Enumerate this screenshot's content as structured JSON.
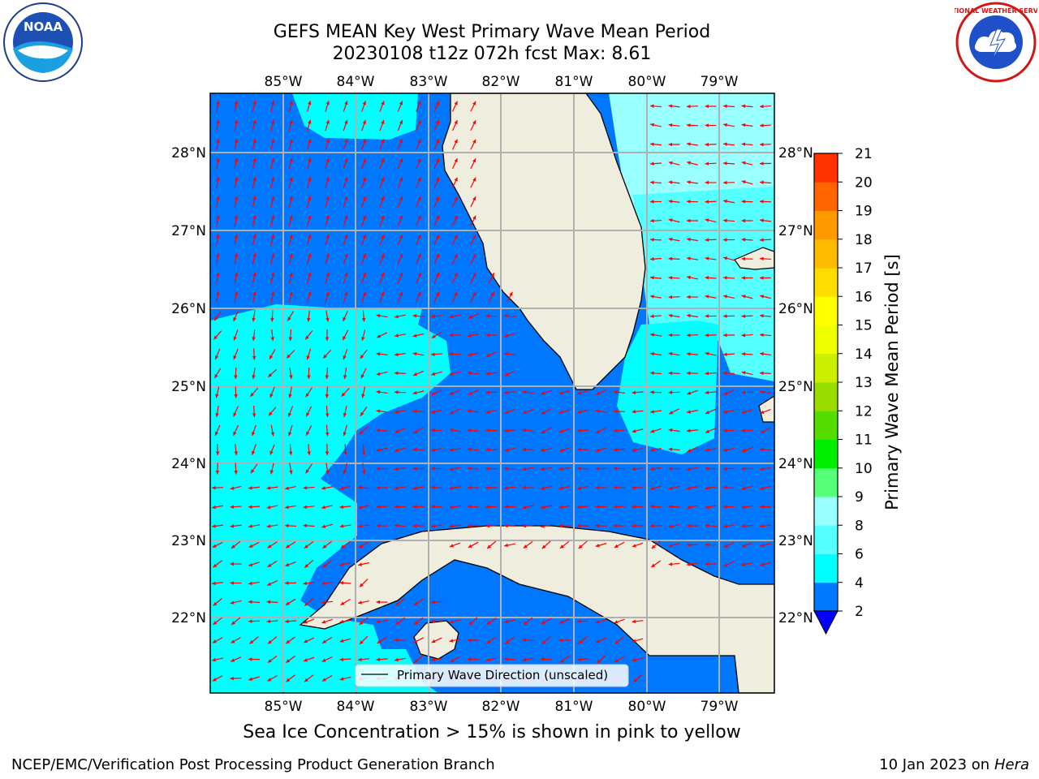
{
  "title_line1": "GEFS MEAN Key West Primary Wave Mean Period",
  "title_line2": "20230108 t12z 072h fcst   Max: 8.61",
  "lon_ticks": [
    "85°W",
    "84°W",
    "83°W",
    "82°W",
    "81°W",
    "80°W",
    "79°W"
  ],
  "lat_ticks": [
    "28°N",
    "27°N",
    "26°N",
    "25°N",
    "24°N",
    "23°N",
    "22°N"
  ],
  "legend_label": "Primary Wave Direction (unscaled)",
  "colorbar": {
    "title": "Primary Wave Mean Period [s]",
    "levels": [
      "2",
      "4",
      "6",
      "8",
      "9",
      "10",
      "11",
      "12",
      "13",
      "14",
      "15",
      "16",
      "17",
      "18",
      "19",
      "20",
      "21"
    ],
    "colors": [
      "#0077ff",
      "#00ffff",
      "#55ffff",
      "#99ffff",
      "#55ff77",
      "#00ee00",
      "#55dd00",
      "#99dd00",
      "#ccee00",
      "#eeff00",
      "#ffff00",
      "#ffdd00",
      "#ffbb00",
      "#ff9900",
      "#ff6600",
      "#ff3300"
    ],
    "under_color": "#0000ff"
  },
  "caption": "Sea Ice Concentration > 15% is shown in pink to yellow",
  "footer_left": "NCEP/EMC/Verification Post Processing Product Generation Branch",
  "footer_right_date": "10 Jan 2023 on",
  "footer_right_host": "Hera",
  "logos": {
    "noaa_text": "NOAA",
    "nws_text": "NATIONAL WEATHER SERVICE"
  },
  "colors": {
    "land": "#efedde",
    "arrow": "#ff0000",
    "grid": "#b0b0b0"
  }
}
